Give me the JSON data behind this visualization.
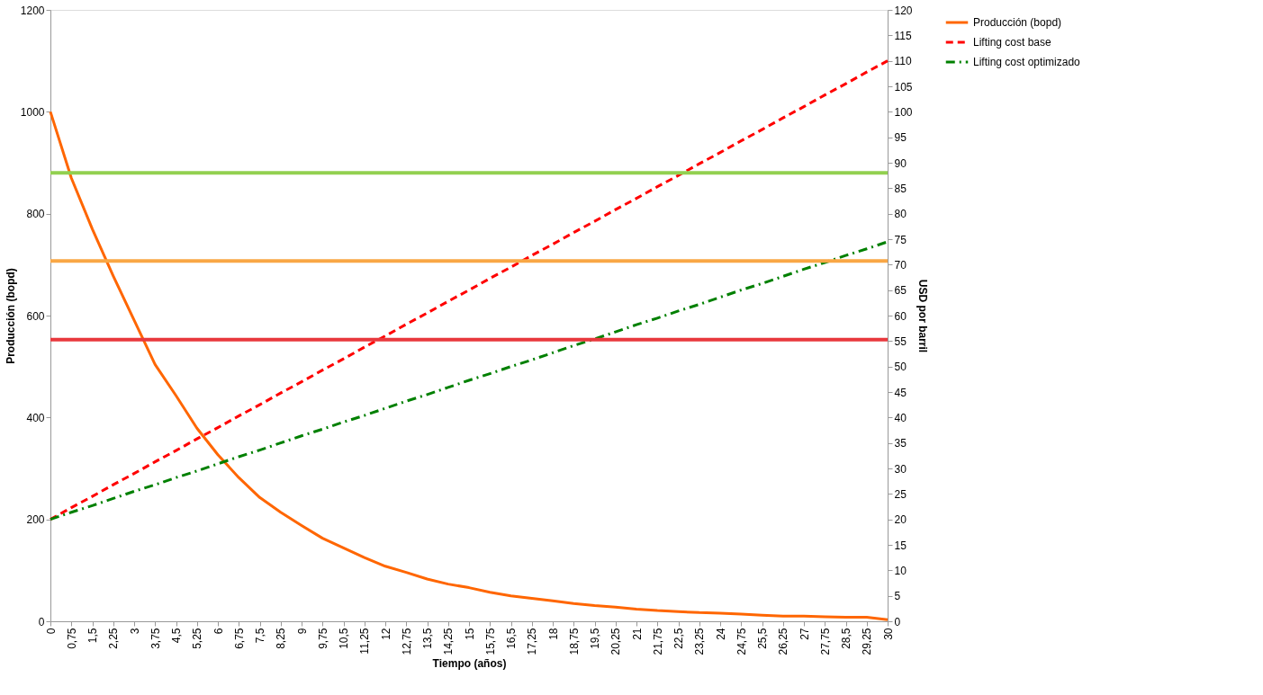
{
  "chart_data": {
    "type": "line",
    "xlabel": "Tiempo (años)",
    "ylabel": "Producción (bopd)",
    "y2label": "USD por barril",
    "categories": [
      "0",
      "0,75",
      "1,5",
      "2,25",
      "3",
      "3,75",
      "4,5",
      "5,25",
      "6",
      "6,75",
      "7,5",
      "8,25",
      "9",
      "9,75",
      "10,5",
      "11,25",
      "12",
      "12,75",
      "13,5",
      "14,25",
      "15",
      "15,75",
      "16,5",
      "17,25",
      "18",
      "18,75",
      "19,5",
      "20,25",
      "21",
      "21,75",
      "22,5",
      "23,25",
      "24",
      "24,75",
      "25,5",
      "26,25",
      "27",
      "27,75",
      "28,5",
      "29,25",
      "30"
    ],
    "series": [
      {
        "name": "Producción (bopd)",
        "color": "#ff6600",
        "line_style": "solid",
        "values": [
          1000,
          870,
          770,
          678,
          591,
          504,
          443,
          379,
          327,
          282,
          243,
          214,
          188,
          163,
          144,
          125,
          108,
          96,
          83,
          73,
          66,
          57,
          50,
          45,
          40,
          35,
          31,
          28,
          24,
          21,
          19,
          17,
          16,
          14,
          12,
          10,
          10,
          9,
          8,
          8,
          3
        ]
      },
      {
        "name": "Lifting cost base",
        "color": "#ff0000",
        "line_style": "dashed",
        "axis": "y2",
        "values": [
          20,
          22.3,
          24.5,
          26.8,
          29,
          31.3,
          33.5,
          35.8,
          38,
          40.3,
          42.5,
          44.8,
          47,
          49.3,
          51.5,
          53.8,
          56,
          58.3,
          60.5,
          62.8,
          65,
          67.3,
          69.5,
          71.8,
          74,
          76.3,
          78.5,
          80.8,
          83,
          85.3,
          87.5,
          89.8,
          92,
          94.3,
          96.5,
          98.8,
          101,
          103.3,
          105.5,
          107.8,
          110
        ]
      },
      {
        "name": "Lifting cost optimizado",
        "color": "#008000",
        "line_style": "dashdot",
        "axis": "y2",
        "values": [
          20,
          21.4,
          22.7,
          24.1,
          25.5,
          26.8,
          28.2,
          29.5,
          30.9,
          32.3,
          33.6,
          35.0,
          36.4,
          37.7,
          39.1,
          40.4,
          41.8,
          43.2,
          44.5,
          45.9,
          47.3,
          48.6,
          50.0,
          51.3,
          52.7,
          54.1,
          55.4,
          56.8,
          58.2,
          59.5,
          60.9,
          62.2,
          63.6,
          65.0,
          66.3,
          67.7,
          69.1,
          70.4,
          71.8,
          73.1,
          74.5
        ]
      }
    ],
    "ylim": [
      0,
      1200
    ],
    "yticks": [
      0,
      200,
      400,
      600,
      800,
      1000,
      1200
    ],
    "y2lim": [
      0,
      120
    ],
    "y2ticks": [
      0,
      5,
      10,
      15,
      20,
      25,
      30,
      35,
      40,
      45,
      50,
      55,
      60,
      65,
      70,
      75,
      80,
      85,
      90,
      95,
      100,
      105,
      110,
      115,
      120
    ],
    "ref_lines": [
      {
        "axis": "y2",
        "value": 88,
        "color": "#92d050"
      },
      {
        "axis": "y2",
        "value": 70.7,
        "color": "#f9a745"
      },
      {
        "axis": "y2",
        "value": 55.3,
        "color": "#e8383d"
      }
    ],
    "grid": false,
    "legend": "right",
    "marker": "none"
  }
}
